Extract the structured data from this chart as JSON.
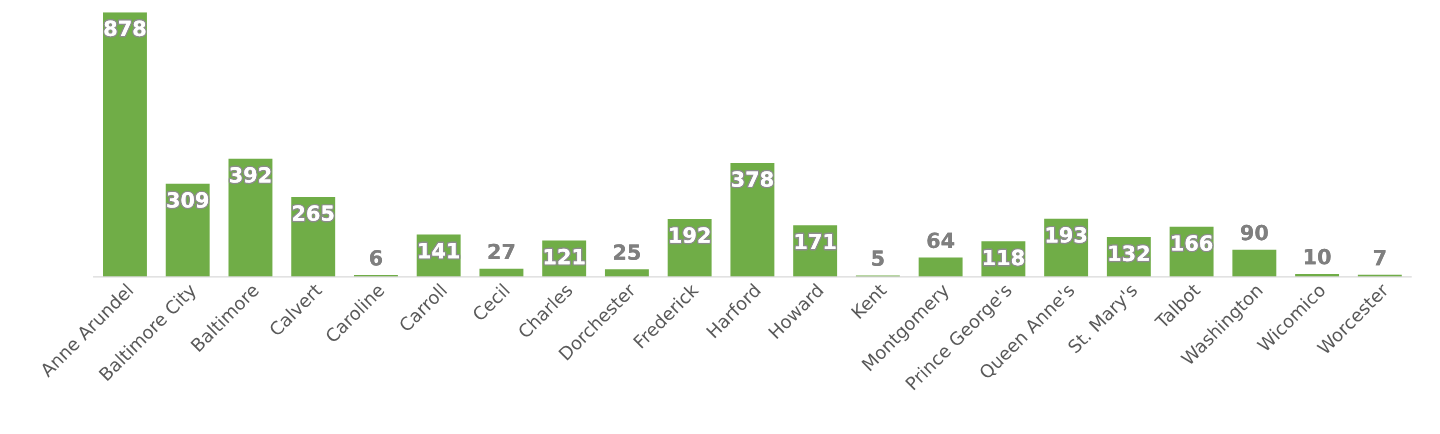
{
  "chart_data": {
    "type": "bar",
    "categories": [
      "Anne Arundel",
      "Baltimore City",
      "Baltimore",
      "Calvert",
      "Caroline",
      "Carroll",
      "Cecil",
      "Charles",
      "Dorchester",
      "Frederick",
      "Harford",
      "Howard",
      "Kent",
      "Montgomery",
      "Prince George's",
      "Queen Anne's",
      "St. Mary's",
      "Talbot",
      "Washington",
      "Wicomico",
      "Worcester"
    ],
    "values": [
      878,
      309,
      392,
      265,
      6,
      141,
      27,
      121,
      25,
      192,
      378,
      171,
      5,
      64,
      118,
      193,
      132,
      166,
      90,
      10,
      7
    ],
    "color": "#70ad47",
    "data_labels": true,
    "grid": false,
    "legend": false
  }
}
